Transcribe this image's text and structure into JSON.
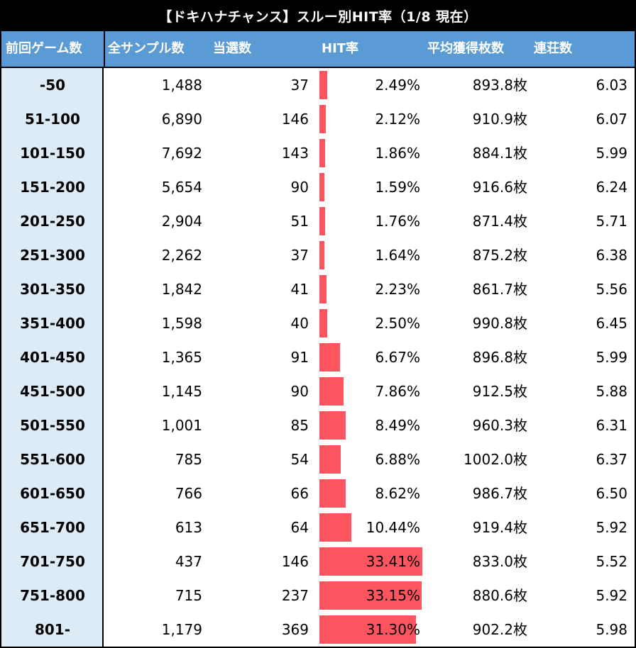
{
  "title": "【ドキハナチャンス】スルー別HIT率（1/8 現在）",
  "headers": {
    "range": "前回ゲーム数",
    "samples": "全サンプル数",
    "hits": "当選数",
    "rate": "HIT率",
    "avg": "平均獲得枚数",
    "streak": "連荘数"
  },
  "colors": {
    "header_bg": "#5b9bd5",
    "first_col_bg": "#ddebf7",
    "bar": "#ff5561"
  },
  "rows": [
    {
      "range": "-50",
      "samples": "1,488",
      "hits": "37",
      "rate": "2.49%",
      "rate_value": 2.49,
      "avg": "893.8枚",
      "streak": "6.03"
    },
    {
      "range": "51-100",
      "samples": "6,890",
      "hits": "146",
      "rate": "2.12%",
      "rate_value": 2.12,
      "avg": "910.9枚",
      "streak": "6.07"
    },
    {
      "range": "101-150",
      "samples": "7,692",
      "hits": "143",
      "rate": "1.86%",
      "rate_value": 1.86,
      "avg": "884.1枚",
      "streak": "5.99"
    },
    {
      "range": "151-200",
      "samples": "5,654",
      "hits": "90",
      "rate": "1.59%",
      "rate_value": 1.59,
      "avg": "916.6枚",
      "streak": "6.24"
    },
    {
      "range": "201-250",
      "samples": "2,904",
      "hits": "51",
      "rate": "1.76%",
      "rate_value": 1.76,
      "avg": "871.4枚",
      "streak": "5.71"
    },
    {
      "range": "251-300",
      "samples": "2,262",
      "hits": "37",
      "rate": "1.64%",
      "rate_value": 1.64,
      "avg": "875.2枚",
      "streak": "6.38"
    },
    {
      "range": "301-350",
      "samples": "1,842",
      "hits": "41",
      "rate": "2.23%",
      "rate_value": 2.23,
      "avg": "861.7枚",
      "streak": "5.56"
    },
    {
      "range": "351-400",
      "samples": "1,598",
      "hits": "40",
      "rate": "2.50%",
      "rate_value": 2.5,
      "avg": "990.8枚",
      "streak": "6.45"
    },
    {
      "range": "401-450",
      "samples": "1,365",
      "hits": "91",
      "rate": "6.67%",
      "rate_value": 6.67,
      "avg": "896.8枚",
      "streak": "5.99"
    },
    {
      "range": "451-500",
      "samples": "1,145",
      "hits": "90",
      "rate": "7.86%",
      "rate_value": 7.86,
      "avg": "912.5枚",
      "streak": "5.88"
    },
    {
      "range": "501-550",
      "samples": "1,001",
      "hits": "85",
      "rate": "8.49%",
      "rate_value": 8.49,
      "avg": "960.3枚",
      "streak": "6.31"
    },
    {
      "range": "551-600",
      "samples": "785",
      "hits": "54",
      "rate": "6.88%",
      "rate_value": 6.88,
      "avg": "1002.0枚",
      "streak": "6.37"
    },
    {
      "range": "601-650",
      "samples": "766",
      "hits": "66",
      "rate": "8.62%",
      "rate_value": 8.62,
      "avg": "986.7枚",
      "streak": "6.50"
    },
    {
      "range": "651-700",
      "samples": "613",
      "hits": "64",
      "rate": "10.44%",
      "rate_value": 10.44,
      "avg": "919.4枚",
      "streak": "5.92"
    },
    {
      "range": "701-750",
      "samples": "437",
      "hits": "146",
      "rate": "33.41%",
      "rate_value": 33.41,
      "avg": "833.0枚",
      "streak": "5.52"
    },
    {
      "range": "751-800",
      "samples": "715",
      "hits": "237",
      "rate": "33.15%",
      "rate_value": 33.15,
      "avg": "880.6枚",
      "streak": "5.92"
    },
    {
      "range": "801-",
      "samples": "1,179",
      "hits": "369",
      "rate": "31.30%",
      "rate_value": 31.3,
      "avg": "902.2枚",
      "streak": "5.98"
    }
  ]
}
